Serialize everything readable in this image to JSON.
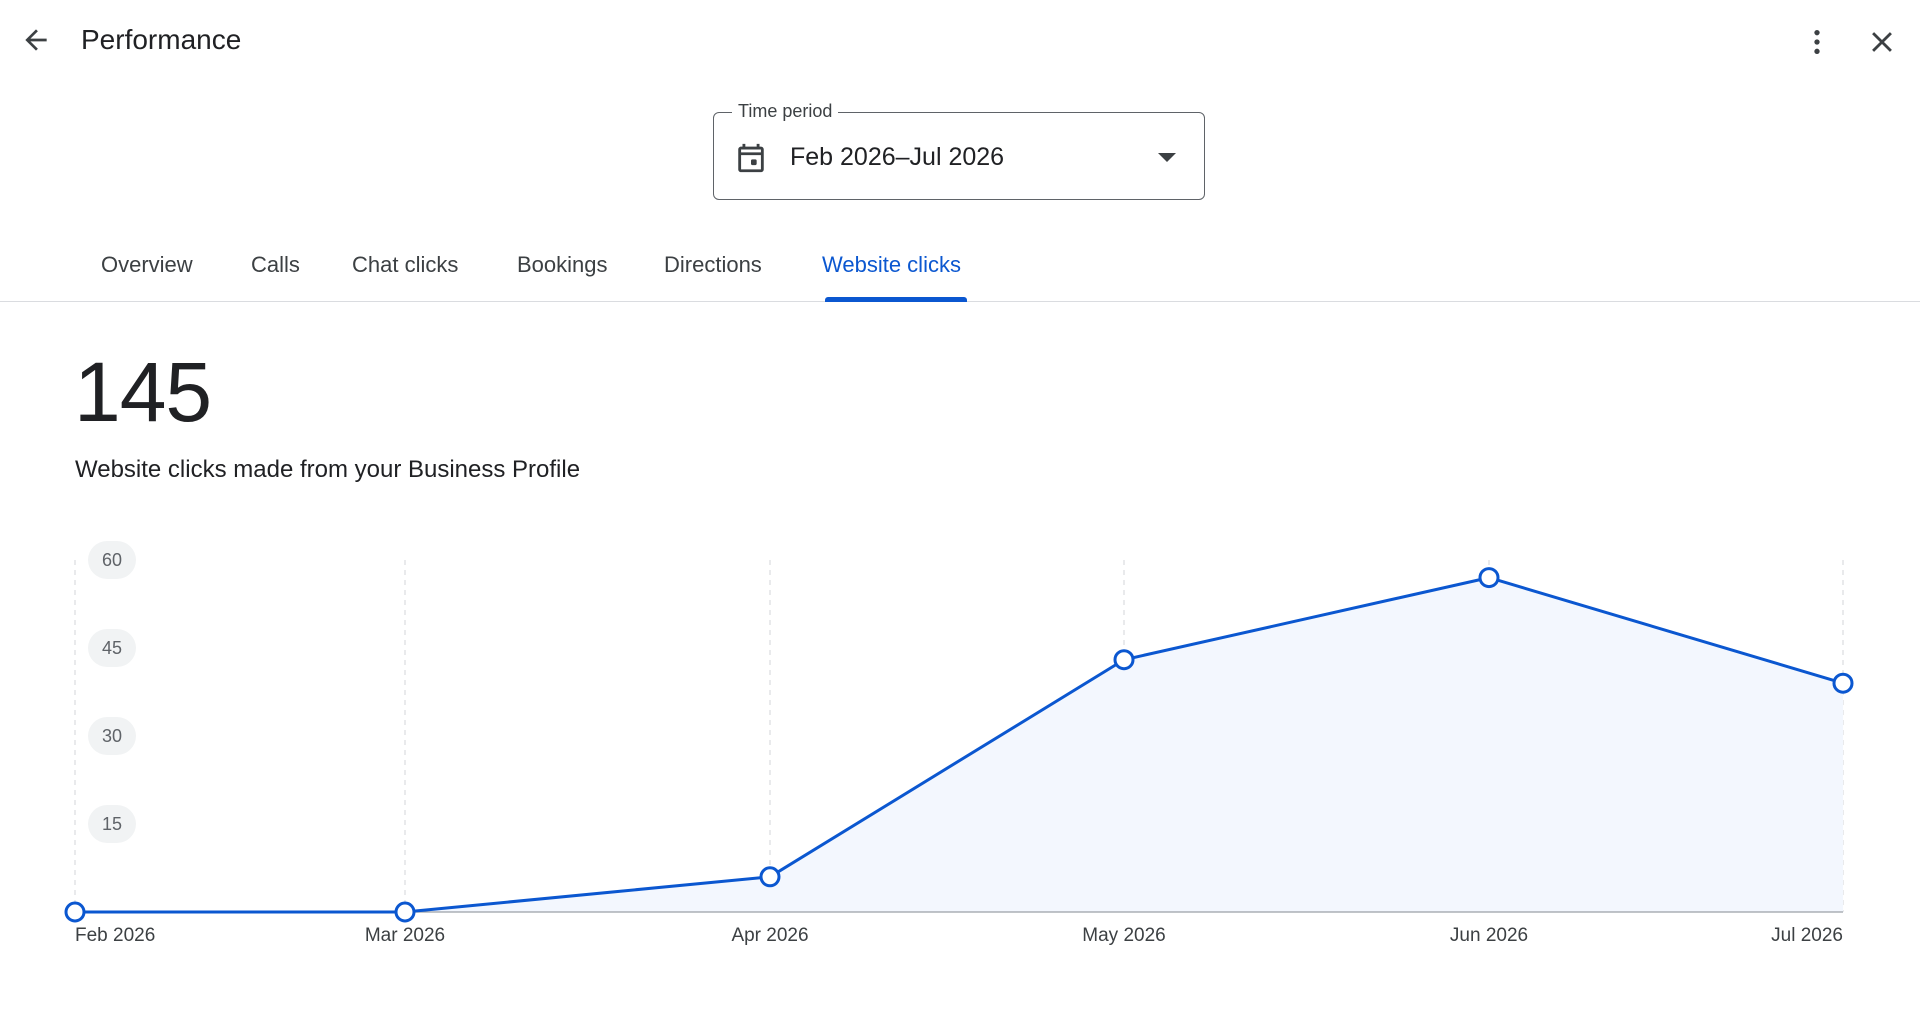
{
  "header": {
    "title": "Performance",
    "back_icon": "arrow-back-icon",
    "more_icon": "more-vert-icon",
    "close_icon": "close-icon"
  },
  "time_period": {
    "label": "Time period",
    "value": "Feb 2026–Jul 2026",
    "icon": "calendar-icon",
    "dropdown_icon": "arrow-drop-down-icon"
  },
  "tabs": [
    {
      "label": "Overview",
      "active": false
    },
    {
      "label": "Calls",
      "active": false
    },
    {
      "label": "Chat clicks",
      "active": false
    },
    {
      "label": "Bookings",
      "active": false
    },
    {
      "label": "Directions",
      "active": false
    },
    {
      "label": "Website clicks",
      "active": true
    }
  ],
  "summary": {
    "total": "145",
    "description": "Website clicks made from your Business Profile"
  },
  "colors": {
    "accent": "#0b57d0",
    "area_fill": "#f3f7fe",
    "text": "#202124",
    "divider": "#dadce0"
  },
  "chart_data": {
    "type": "area",
    "categories": [
      "Feb 2026",
      "Mar 2026",
      "Apr 2026",
      "May 2026",
      "Jun 2026",
      "Jul 2026"
    ],
    "series": [
      {
        "values": [
          0,
          0,
          6,
          43,
          57,
          39
        ]
      }
    ],
    "yticks": [
      15,
      30,
      45,
      60
    ],
    "ylim": [
      0,
      60
    ],
    "grid": "vertical dashed"
  }
}
